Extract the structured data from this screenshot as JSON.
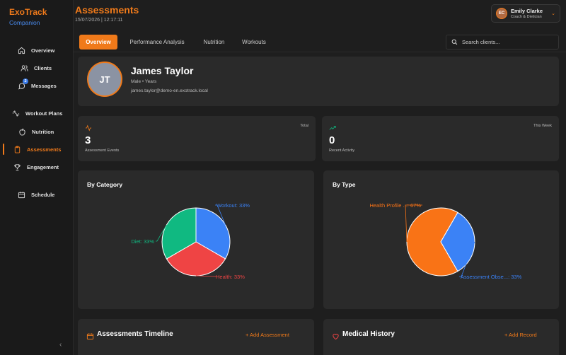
{
  "brand": {
    "title": "ExoTrack",
    "subtitle": "Companion"
  },
  "sidebar": {
    "items": [
      {
        "label": "Overview",
        "icon": "home-icon"
      },
      {
        "label": "Clients",
        "icon": "users-icon"
      },
      {
        "label": "Messages",
        "icon": "message-icon",
        "badge": "2"
      },
      {
        "label": "Workout Plans",
        "icon": "dumbbell-icon"
      },
      {
        "label": "Nutrition",
        "icon": "apple-icon"
      },
      {
        "label": "Assessments",
        "icon": "clipboard-icon",
        "active": true
      },
      {
        "label": "Engagement",
        "icon": "trophy-icon"
      },
      {
        "label": "Schedule",
        "icon": "calendar-icon"
      }
    ],
    "collapse_icon": "chevron-left-icon"
  },
  "header": {
    "title": "Assessments",
    "datetime": "15/07/2026 | 12:17:11",
    "user": {
      "initials": "EC",
      "name": "Emily Clarke",
      "role": "Coach & Dietician"
    }
  },
  "tabs": [
    {
      "label": "Overview",
      "active": true
    },
    {
      "label": "Performance Analysis"
    },
    {
      "label": "Nutrition"
    },
    {
      "label": "Workouts"
    }
  ],
  "search": {
    "placeholder": "Search clients..."
  },
  "profile": {
    "initials": "JT",
    "name": "James Taylor",
    "meta": "Male  •  Years",
    "email": "james.taylor@demo-en.exotrack.local"
  },
  "stats": [
    {
      "tag": "Total",
      "value": "3",
      "label": "Assessment Events",
      "icon": "activity-icon"
    },
    {
      "tag": "This Week",
      "value": "0",
      "label": "Recent Activity",
      "icon": "trending-up-icon"
    }
  ],
  "colors": {
    "accent": "#f07a1a",
    "blue": "#3b82f6",
    "green": "#10b981",
    "red": "#ef4444"
  },
  "chart_data": [
    {
      "type": "pie",
      "title": "By Category",
      "slices": [
        {
          "label": "Workout: 33%",
          "value": 33.33,
          "color": "#3b82f6"
        },
        {
          "label": "Health: 33%",
          "value": 33.33,
          "color": "#ef4444"
        },
        {
          "label": "Diet: 33%",
          "value": 33.34,
          "color": "#10b981"
        }
      ]
    },
    {
      "type": "pie",
      "title": "By Type",
      "slices": [
        {
          "label": "Health Profile ...: 67%",
          "value": 66.67,
          "color": "#f97316"
        },
        {
          "label": "Assessment Obse...: 33%",
          "value": 33.33,
          "color": "#3b82f6"
        }
      ]
    }
  ],
  "bottom": [
    {
      "title": "Assessments Timeline",
      "action": "+ Add Assessment",
      "icon": "calendar-icon"
    },
    {
      "title": "Medical History",
      "action": "+ Add Record",
      "icon": "heart-icon"
    }
  ]
}
